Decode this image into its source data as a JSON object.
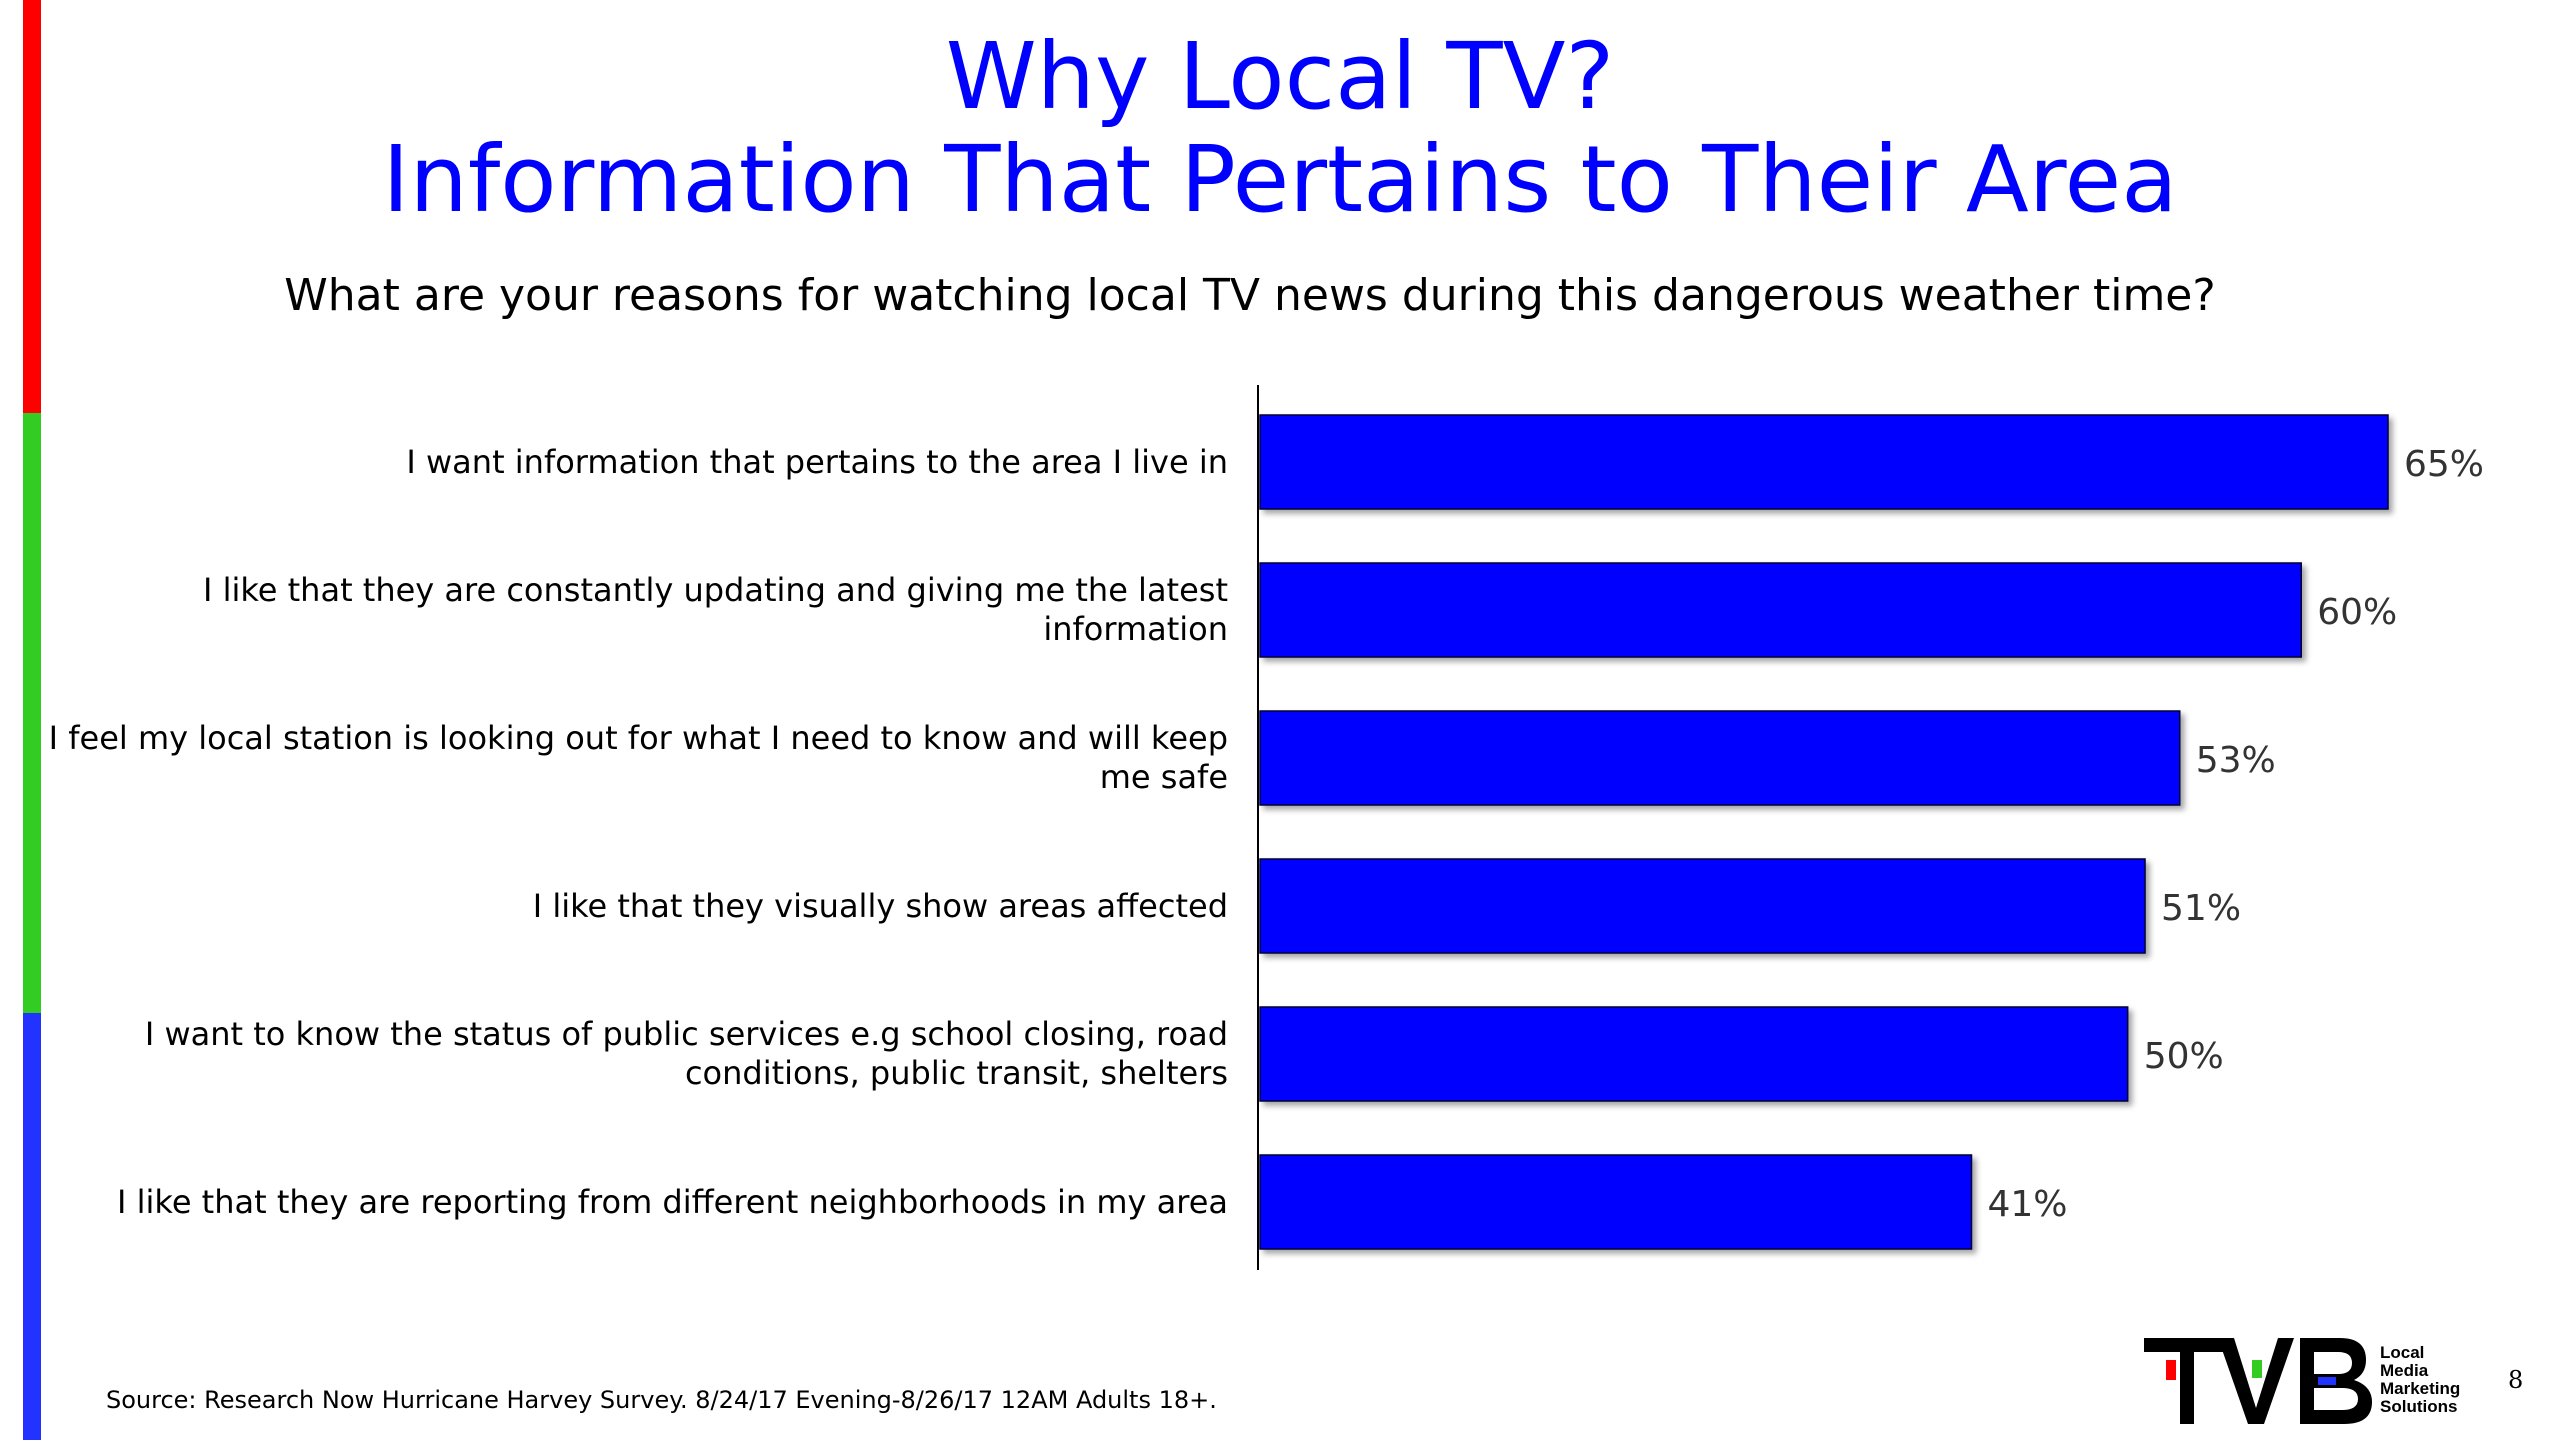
{
  "slide": {
    "title_line1": "Why Local TV?",
    "title_line2": "Information That Pertains to Their Area",
    "subtitle": "What are your reasons for watching local TV news during this dangerous weather time?",
    "source": "Source: Research Now Hurricane Harvey Survey. 8/24/17 Evening-8/26/17 12AM Adults 18+.",
    "page_number": "8",
    "side_bar_colors": [
      "#ff0000",
      "#33cc22",
      "#2233ff"
    ]
  },
  "logo": {
    "brand": "TVB",
    "tagline": [
      "Local",
      "Media",
      "Marketing",
      "Solutions"
    ]
  },
  "chart_data": {
    "type": "bar",
    "orientation": "horizontal",
    "title": "Why Local TV? Information That Pertains to Their Area",
    "categories": [
      "I want information that pertains to the area I live in",
      "I like that they are constantly updating and giving me the latest information",
      "I feel my local station is looking out for what I need to know and will keep me safe",
      "I like that they visually show areas affected",
      "I want to know the status of public services e.g school closing, road conditions, public transit, shelters",
      "I like that they are reporting from different neighborhoods in my area"
    ],
    "values": [
      65,
      60,
      53,
      51,
      50,
      41
    ],
    "data_labels": [
      "65%",
      "60%",
      "53%",
      "51%",
      "50%",
      "41%"
    ],
    "unit": "%",
    "bar_color": "#0000ff",
    "xlim": [
      0,
      65
    ],
    "grid": false,
    "legend": "none"
  }
}
